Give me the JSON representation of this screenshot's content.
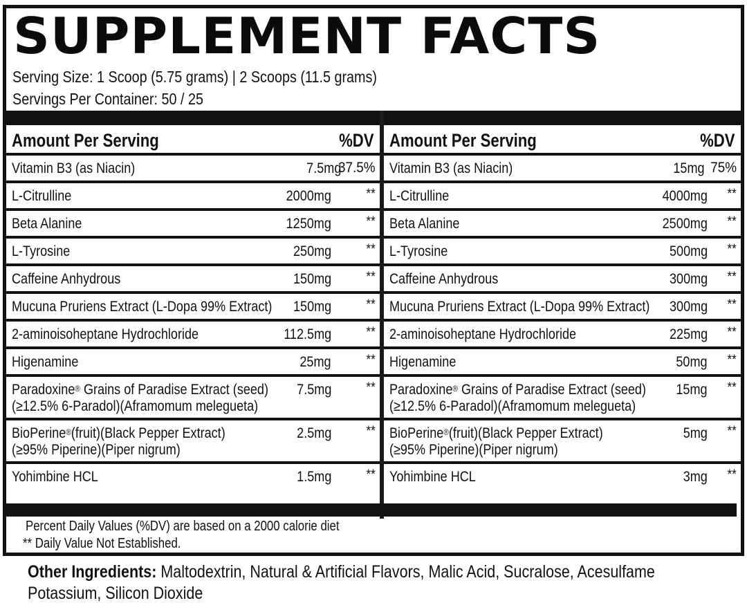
{
  "label": {
    "title": "SUPPLEMENT FACTS",
    "serving_size": "Serving Size: 1 Scoop (5.75 grams) | 2 Scoops (11.5 grams)",
    "servings_per_container": "Servings Per Container: 50 / 25",
    "colors": {
      "ink": "#111111",
      "background": "#ffffff"
    }
  },
  "panels": [
    {
      "header_amount": "Amount Per Serving",
      "header_dv": "%DV",
      "rows": [
        {
          "name": "Vitamin B3 (as Niacin)",
          "amount": "7.5mg",
          "dv": "37.5%"
        },
        {
          "name": "L-Citrulline",
          "amount": "2000mg",
          "dv": "**"
        },
        {
          "name": "Beta Alanine",
          "amount": "1250mg",
          "dv": "**"
        },
        {
          "name": "L-Tyrosine",
          "amount": "250mg",
          "dv": "**"
        },
        {
          "name": "Caffeine Anhydrous",
          "amount": "150mg",
          "dv": "**"
        },
        {
          "name": "Mucuna Pruriens Extract (L-Dopa 99% Extract)",
          "amount": "150mg",
          "dv": "**"
        },
        {
          "name": "2-aminoisoheptane Hydrochloride",
          "amount": "112.5mg",
          "dv": "**"
        },
        {
          "name": "Higenamine",
          "amount": "25mg",
          "dv": "**"
        },
        {
          "name_line1": "Paradoxine",
          "name_line1_sup": "®",
          "name_line1_rest": " Grains of Paradise Extract (seed)",
          "name_line2": "(≥12.5% 6-Paradol)(Aframomum melegueta)",
          "amount": "7.5mg",
          "dv": "**"
        },
        {
          "name_line1": "BioPerine",
          "name_line1_sup": "®",
          "name_line1_rest": "(fruit)(Black Pepper Extract)",
          "name_line2": "(≥95% Piperine)(Piper nigrum)",
          "amount": "2.5mg",
          "dv": "**"
        },
        {
          "name": "Yohimbine HCL",
          "amount": "1.5mg",
          "dv": "**"
        }
      ]
    },
    {
      "header_amount": "Amount Per Serving",
      "header_dv": "%DV",
      "rows": [
        {
          "name": "Vitamin B3 (as Niacin)",
          "amount": "15mg",
          "dv": "75%"
        },
        {
          "name": "L-Citrulline",
          "amount": "4000mg",
          "dv": "**"
        },
        {
          "name": "Beta Alanine",
          "amount": "2500mg",
          "dv": "**"
        },
        {
          "name": "L-Tyrosine",
          "amount": "500mg",
          "dv": "**"
        },
        {
          "name": "Caffeine Anhydrous",
          "amount": "300mg",
          "dv": "**"
        },
        {
          "name": "Mucuna Pruriens Extract (L-Dopa 99% Extract)",
          "amount": "300mg",
          "dv": "**"
        },
        {
          "name": "2-aminoisoheptane Hydrochloride",
          "amount": "225mg",
          "dv": "**"
        },
        {
          "name": "Higenamine",
          "amount": "50mg",
          "dv": "**"
        },
        {
          "name_line1": "Paradoxine",
          "name_line1_sup": "®",
          "name_line1_rest": " Grains of Paradise Extract (seed)",
          "name_line2": "(≥12.5% 6-Paradol)(Aframomum melegueta)",
          "amount": "15mg",
          "dv": "**"
        },
        {
          "name_line1": "BioPerine",
          "name_line1_sup": "®",
          "name_line1_rest": "(fruit)(Black Pepper Extract)",
          "name_line2": "(≥95% Piperine)(Piper nigrum)",
          "amount": "5mg",
          "dv": "**"
        },
        {
          "name": "Yohimbine HCL",
          "amount": "3mg",
          "dv": "**"
        }
      ]
    }
  ],
  "footnotes": {
    "line1": "Percent Daily Values (%DV) are  based on a 2000 calorie diet",
    "line2": "** Daily Value Not Established."
  },
  "other_ingredients": {
    "label": "Other Ingredients:",
    "text_line1": " Maltodextrin, Natural & Artificial Flavors, Malic Acid, Sucralose, Acesulfame",
    "text_line2": "Potassium, Silicon Dioxide"
  }
}
